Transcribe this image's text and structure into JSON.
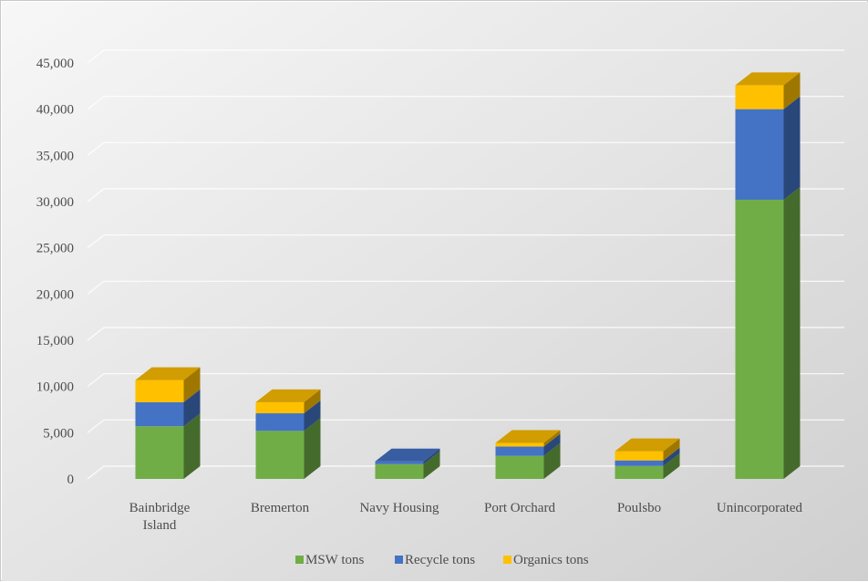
{
  "chart_data": {
    "type": "bar",
    "stacked": true,
    "three_d": true,
    "categories": [
      "Bainbridge Island",
      "Bremerton",
      "Navy Housing",
      "Port Orchard",
      "Poulsbo",
      "Unincorporated"
    ],
    "category_label_lines": [
      [
        "Bainbridge",
        "Island"
      ],
      [
        "Bremerton"
      ],
      [
        "Navy Housing"
      ],
      [
        "Port Orchard"
      ],
      [
        "Poulsbo"
      ],
      [
        "Unincorporated"
      ]
    ],
    "series": [
      {
        "name": "MSW tons",
        "color": "#70ad47",
        "values": [
          5700,
          5200,
          1600,
          2500,
          1400,
          30200
        ]
      },
      {
        "name": "Recycle tons",
        "color": "#4472c4",
        "values": [
          2600,
          1900,
          300,
          1000,
          600,
          9800
        ]
      },
      {
        "name": "Organics tons",
        "color": "#ffc000",
        "values": [
          2400,
          1200,
          0,
          400,
          1000,
          2600
        ]
      }
    ],
    "ylim": [
      0,
      45000
    ],
    "yticks": [
      "0",
      "5,000",
      "10,000",
      "15,000",
      "20,000",
      "25,000",
      "30,000",
      "35,000",
      "40,000",
      "45,000"
    ],
    "grid": true,
    "legend_position": "bottom",
    "title": "",
    "xlabel": "",
    "ylabel": ""
  }
}
